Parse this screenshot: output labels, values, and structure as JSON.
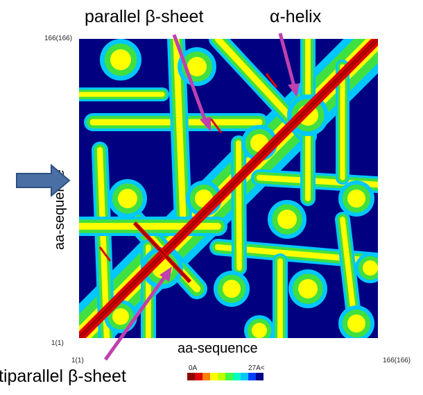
{
  "labels": {
    "parallel": "parallel β-sheet",
    "helix": "α-helix",
    "antiparallel": "tiparallel β-sheet",
    "xaxis": "aa-sequence",
    "yaxis": "aa-sequence"
  },
  "ticks": {
    "top_left": "166(166)",
    "bottom_left_y": "1(1)",
    "bottom_left_x": "1(1)",
    "bottom_right": "166(166)"
  },
  "legend": {
    "min_label": "0A",
    "max_label": "27A<",
    "colors": [
      "#8b0000",
      "#e00000",
      "#ff8000",
      "#ffff00",
      "#c0ff00",
      "#40ff40",
      "#00ffc0",
      "#00c8ff",
      "#0040ff",
      "#00008b"
    ]
  },
  "colors": {
    "arrow_magenta": "#c040b0",
    "arrow_blue": "#4a6fa5",
    "map_background": "#000080"
  }
}
